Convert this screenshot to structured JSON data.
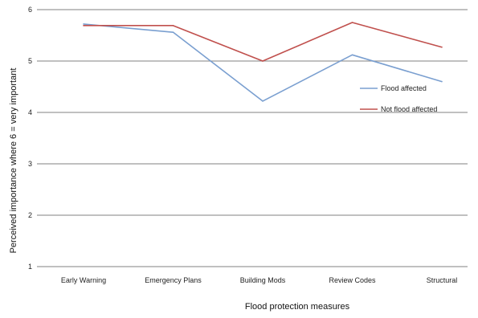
{
  "chart_data": {
    "type": "line",
    "categories": [
      "Early Warning",
      "Emergency Plans",
      "Building Mods",
      "Review Codes",
      "Structural"
    ],
    "series": [
      {
        "name": "Flood affected",
        "values": [
          5.72,
          5.56,
          4.22,
          5.12,
          4.6
        ],
        "color": "#7a9fd0"
      },
      {
        "name": "Not flood affected",
        "values": [
          5.69,
          5.69,
          5.0,
          5.75,
          5.27
        ],
        "color": "#c0504d"
      }
    ],
    "xlabel": "Flood protection measures",
    "ylabel": "Perceived importance where 6 = very important",
    "ylim": [
      1,
      6
    ],
    "yticks": [
      1,
      2,
      3,
      4,
      5,
      6
    ],
    "grid": true,
    "legend_position": "right-middle"
  }
}
